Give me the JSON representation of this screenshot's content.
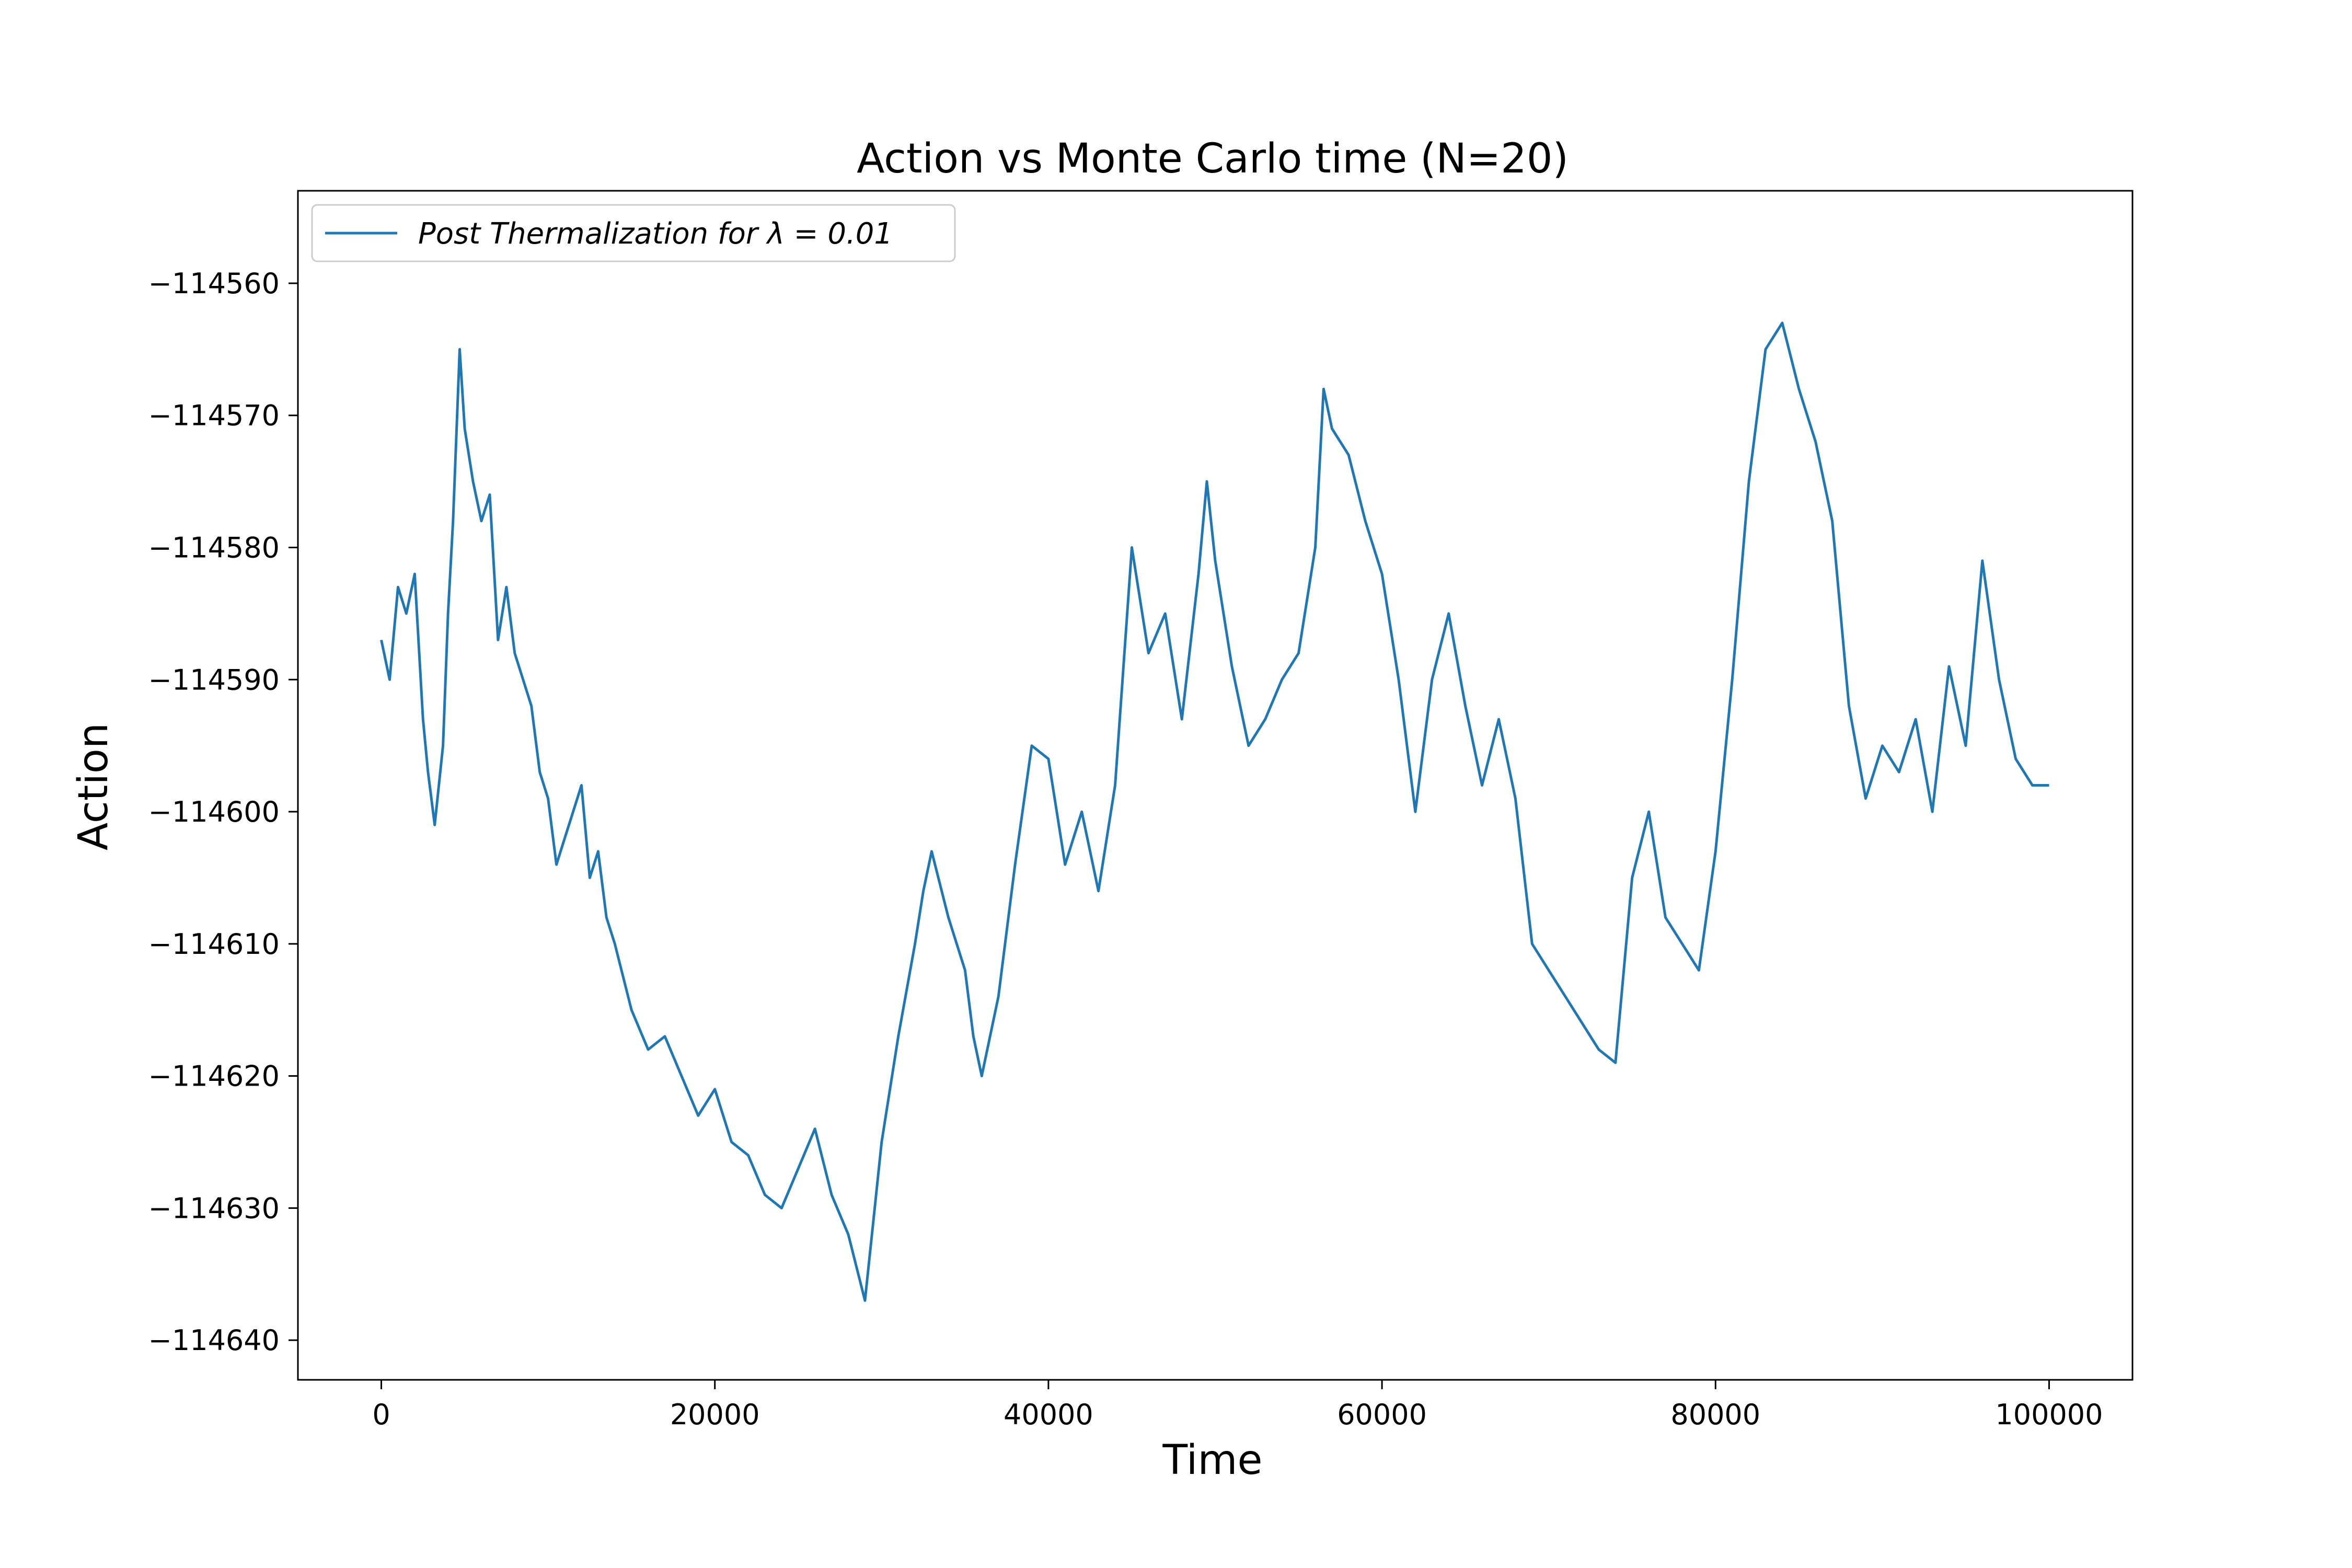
{
  "chart_data": {
    "type": "line",
    "title": "Action vs Monte Carlo time (N=20)",
    "xlabel": "Time",
    "ylabel": "Action",
    "xlim": [
      -5000,
      105000
    ],
    "ylim": [
      -114643.0,
      -114553.0
    ],
    "xticks": [
      0,
      20000,
      40000,
      60000,
      80000,
      100000
    ],
    "xtick_labels": [
      "0",
      "20000",
      "40000",
      "60000",
      "80000",
      "100000"
    ],
    "yticks": [
      -114560,
      -114570,
      -114580,
      -114590,
      -114600,
      -114610,
      -114620,
      -114630,
      -114640
    ],
    "ytick_labels": [
      "−114560",
      "−114570",
      "−114580",
      "−114590",
      "−114600",
      "−114610",
      "−114620",
      "−114630",
      "−114640"
    ],
    "grid": false,
    "legend_position": "top-left",
    "legend_label": "Post Thermalization for λ = 0.01",
    "line_color": "#1f77b4",
    "series": [
      {
        "name": "Post Thermalization for λ = 0.01",
        "x": [
          0,
          500,
          1000,
          1500,
          2000,
          2500,
          2800,
          3200,
          3700,
          4000,
          4300,
          4700,
          5000,
          5500,
          6000,
          6500,
          7000,
          7500,
          8000,
          8500,
          9000,
          9500,
          10000,
          10500,
          11000,
          11500,
          12000,
          12500,
          13000,
          13500,
          14000,
          15000,
          16000,
          17000,
          18000,
          19000,
          20000,
          21000,
          22000,
          23000,
          24000,
          25000,
          26000,
          27000,
          28000,
          29000,
          29500,
          30000,
          31000,
          32000,
          32500,
          33000,
          34000,
          35000,
          35500,
          36000,
          37000,
          38000,
          39000,
          40000,
          41000,
          42000,
          43000,
          44000,
          45000,
          46000,
          47000,
          48000,
          49000,
          49500,
          50000,
          51000,
          52000,
          53000,
          54000,
          55000,
          56000,
          56500,
          57000,
          58000,
          59000,
          60000,
          61000,
          62000,
          63000,
          64000,
          65000,
          66000,
          67000,
          68000,
          69000,
          70000,
          71000,
          72000,
          73000,
          74000,
          75000,
          76000,
          77000,
          78000,
          79000,
          80000,
          81000,
          82000,
          83000,
          84000,
          85000,
          86000,
          87000,
          88000,
          89000,
          90000,
          91000,
          92000,
          93000,
          94000,
          95000,
          96000,
          97000,
          98000,
          99000,
          100000
        ],
        "values": [
          -114587,
          -114590,
          -114583,
          -114585,
          -114582,
          -114593,
          -114597,
          -114601,
          -114595,
          -114585,
          -114578,
          -114565,
          -114571,
          -114575,
          -114578,
          -114576,
          -114587,
          -114583,
          -114588,
          -114590,
          -114592,
          -114597,
          -114599,
          -114604,
          -114602,
          -114600,
          -114598,
          -114605,
          -114603,
          -114608,
          -114610,
          -114615,
          -114618,
          -114617,
          -114620,
          -114623,
          -114621,
          -114625,
          -114626,
          -114629,
          -114630,
          -114627,
          -114624,
          -114629,
          -114632,
          -114637,
          -114631,
          -114625,
          -114617,
          -114610,
          -114606,
          -114603,
          -114608,
          -114612,
          -114617,
          -114620,
          -114614,
          -114604,
          -114595,
          -114596,
          -114604,
          -114600,
          -114606,
          -114598,
          -114580,
          -114588,
          -114585,
          -114593,
          -114582,
          -114575,
          -114581,
          -114589,
          -114595,
          -114593,
          -114590,
          -114588,
          -114580,
          -114568,
          -114571,
          -114573,
          -114578,
          -114582,
          -114590,
          -114600,
          -114590,
          -114585,
          -114592,
          -114598,
          -114593,
          -114599,
          -114610,
          -114612,
          -114614,
          -114616,
          -114618,
          -114619,
          -114605,
          -114600,
          -114608,
          -114610,
          -114612,
          -114603,
          -114590,
          -114575,
          -114565,
          -114563,
          -114568,
          -114572,
          -114578,
          -114592,
          -114599,
          -114595,
          -114597,
          -114593,
          -114600,
          -114589,
          -114595,
          -114581,
          -114590,
          -114596,
          -114598,
          -114598
        ]
      }
    ]
  }
}
